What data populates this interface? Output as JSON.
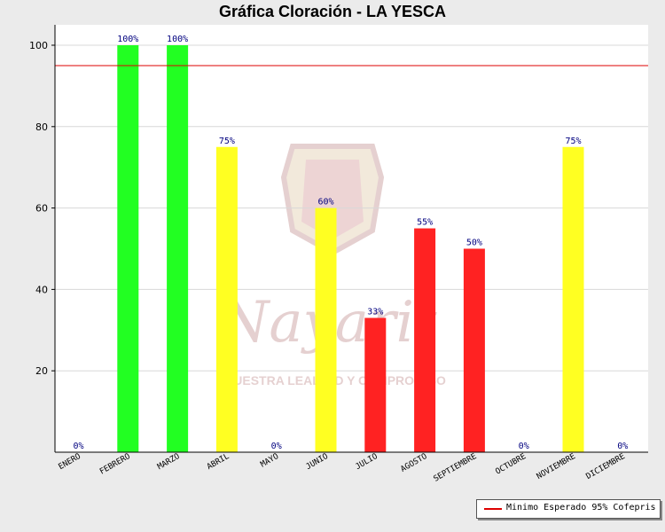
{
  "chart_data": {
    "type": "bar",
    "title": "Gráfica Cloración - LA YESCA",
    "categories": [
      "ENERO",
      "FEBRERO",
      "MARZO",
      "ABRIL",
      "MAYO",
      "JUNIO",
      "JULIO",
      "AGOSTO",
      "SEPTIEMBRE",
      "OCTUBRE",
      "NOVIEMBRE",
      "DICIEMBRE"
    ],
    "values": [
      0,
      100,
      100,
      75,
      0,
      60,
      33,
      55,
      50,
      0,
      75,
      0
    ],
    "data_labels": [
      "0%",
      "100%",
      "100%",
      "75%",
      "0%",
      "60%",
      "33%",
      "55%",
      "50%",
      "0%",
      "75%",
      "0%"
    ],
    "bar_colors": [
      "#22ff22",
      "#22ff22",
      "#22ff22",
      "#ffff22",
      "#ffff22",
      "#ffff22",
      "#ff2222",
      "#ff2222",
      "#ff2222",
      "#ff2222",
      "#ffff22",
      "#ffff22"
    ],
    "ylim": [
      0,
      100
    ],
    "yticks": [
      20,
      40,
      60,
      80,
      100
    ],
    "threshold": {
      "value": 95,
      "color": "#dd0000",
      "label": "Minimo Esperado 95% Cofepris"
    },
    "grid": true,
    "legend_position": "bottom-right",
    "watermark_text": [
      "Nayarit",
      "NUESTRA LEALTAD Y COMPROMISO"
    ]
  }
}
